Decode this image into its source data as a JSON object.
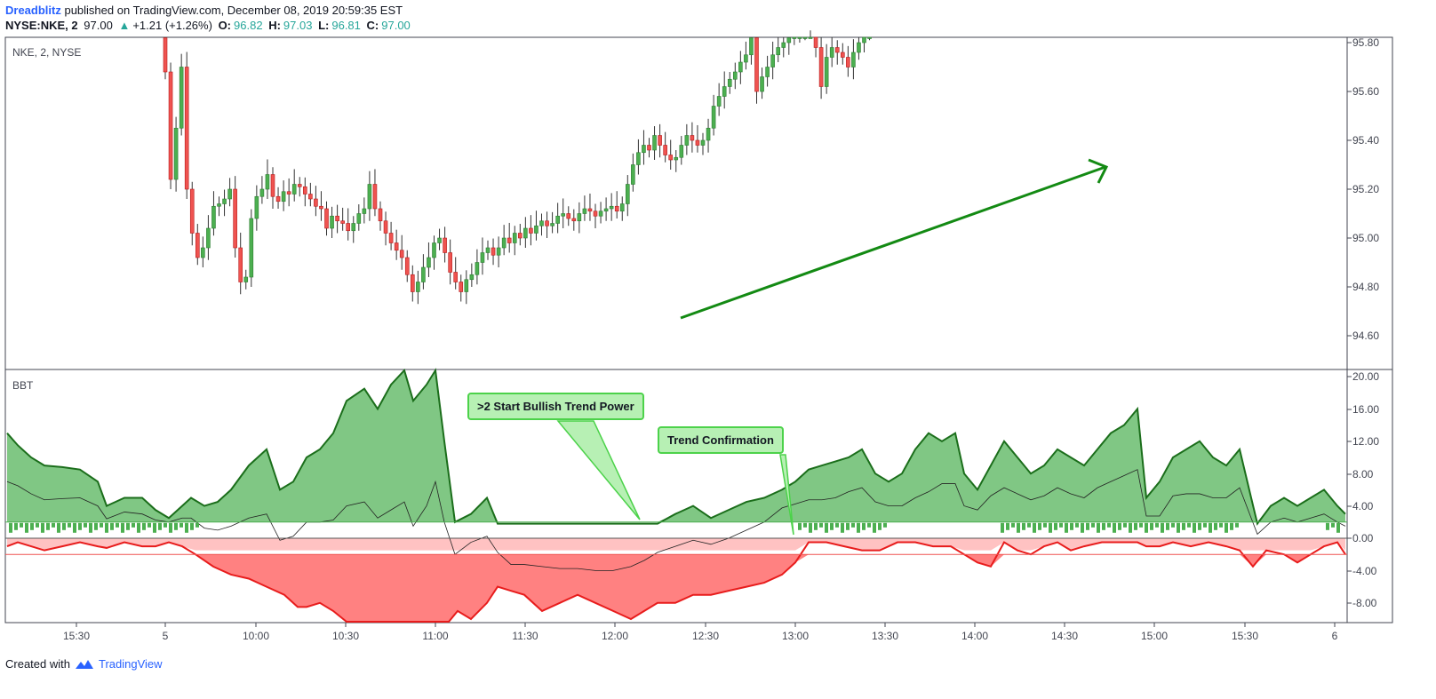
{
  "header": {
    "author": "Dreadblitz",
    "published_text": "published on TradingView.com, December 08, 2019 20:59:35 EST",
    "symbol": "NYSE:NKE, 2",
    "last": "97.00",
    "change_arrow": "▲",
    "change": "+1.21 (+1.26%)",
    "o_label": "O:",
    "o_value": "96.82",
    "h_label": "H:",
    "h_value": "97.03",
    "l_label": "L:",
    "l_value": "96.81",
    "c_label": "C:",
    "c_value": "97.00"
  },
  "main_pane": {
    "label": "NKE, 2, NYSE",
    "price_axis": [
      "95.80",
      "95.60",
      "95.40",
      "95.20",
      "95.00",
      "94.80",
      "94.60"
    ],
    "arrow_color": "#138a13"
  },
  "indicator_pane": {
    "label": "BBT",
    "value_axis": [
      "20.00",
      "16.00",
      "12.00",
      "8.00",
      "4.00",
      "0.00",
      "-4.00",
      "-8.00"
    ],
    "callout_1": ">2 Start Bullish Trend Power",
    "callout_2": "Trend Confirmation"
  },
  "time_axis": [
    "15:30",
    "5",
    "10:00",
    "10:30",
    "11:00",
    "11:30",
    "12:00",
    "12:30",
    "13:00",
    "13:30",
    "14:00",
    "14:30",
    "15:00",
    "15:30",
    "6"
  ],
  "footer": {
    "created_with": "Created with",
    "brand": "TradingView"
  },
  "colors": {
    "bull": "#26a69a",
    "candle_up": "#4caf50",
    "candle_down": "#ef5350",
    "accent": "#2962ff"
  }
}
